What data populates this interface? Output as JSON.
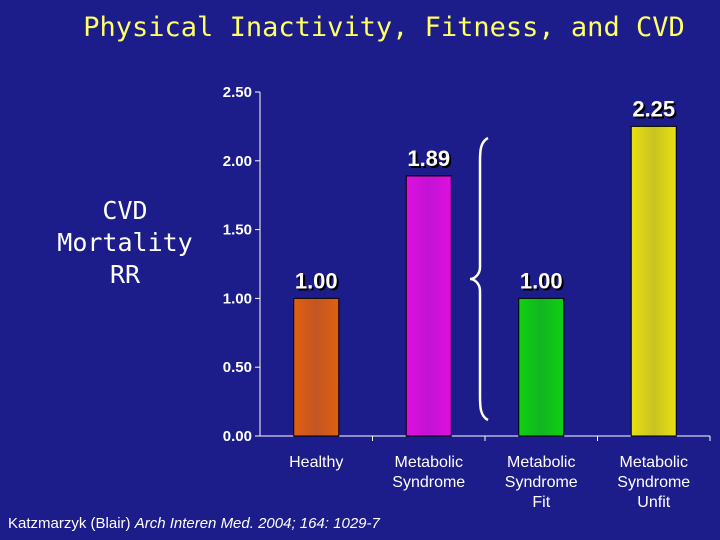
{
  "slide": {
    "title": "Physical Inactivity, Fitness, and CVD",
    "y_label_lines": [
      "CVD",
      "Mortality",
      "RR"
    ],
    "citation_plain": "Katzmarzyk (Blair) ",
    "citation_italic": "Arch Interen Med. 2004; 164: 1029-7"
  },
  "chart_data": {
    "type": "bar",
    "title": "Physical Inactivity, Fitness, and CVD",
    "ylabel": "CVD Mortality RR",
    "xlabel": "",
    "ylim": [
      0,
      2.5
    ],
    "yticks": [
      "0.00",
      "0.50",
      "1.00",
      "1.50",
      "2.00",
      "2.50"
    ],
    "grid": false,
    "categories": [
      [
        "Healthy"
      ],
      [
        "Metabolic",
        "Syndrome"
      ],
      [
        "Metabolic",
        "Syndrome",
        "Fit"
      ],
      [
        "Metabolic",
        "Syndrome",
        "Unfit"
      ]
    ],
    "values": [
      1.0,
      1.89,
      1.0,
      2.25
    ],
    "value_labels": [
      "1.00",
      "1.89",
      "1.00",
      "2.25"
    ],
    "colors": [
      "#e06010",
      "#e010e0",
      "#10d010",
      "#e8e010"
    ],
    "annotation": "bracket grouping Metabolic Syndrome Fit and Unfit"
  }
}
